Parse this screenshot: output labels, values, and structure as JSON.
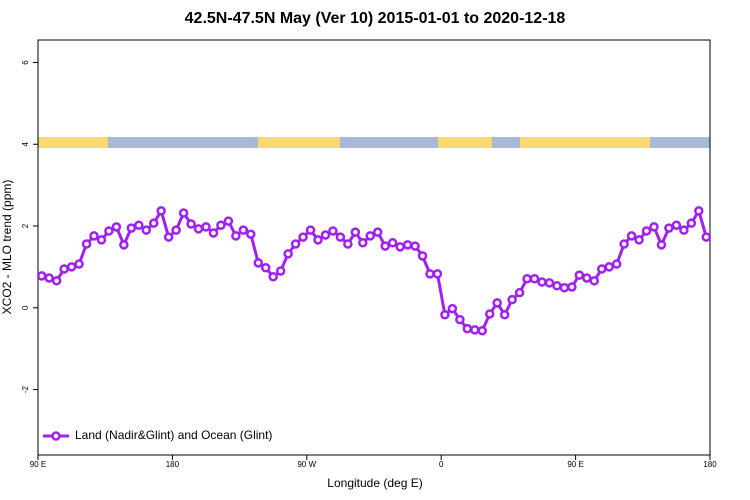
{
  "chart_data": {
    "type": "line",
    "title": "42.5N-47.5N May (Ver 10)   2015-01-01 to 2020-12-18",
    "x_label": "Longitude (deg E)",
    "y_label": "XCO2 - MLO trend (ppm)",
    "xlim": [
      90,
      540
    ],
    "ylim": [
      -3.6,
      6.55
    ],
    "xticks": [
      {
        "value": 90,
        "label": "90 E"
      },
      180,
      {
        "value": 270,
        "label": "90 W"
      },
      {
        "value": 360,
        "label": "0"
      },
      {
        "value": 450,
        "label": "90 E"
      },
      {
        "value": 540,
        "label": "180"
      }
    ],
    "yticks": [
      -2,
      0,
      2,
      4,
      6
    ],
    "grid": false,
    "legend": "bottom-left",
    "x": [
      92.5,
      97.5,
      102.5,
      107.5,
      112.5,
      117.5,
      122.5,
      127.5,
      132.5,
      137.5,
      142.5,
      147.5,
      152.5,
      157.5,
      162.5,
      167.5,
      172.5,
      177.5,
      182.5,
      187.5,
      192.5,
      197.5,
      202.5,
      207.5,
      212.5,
      217.5,
      222.5,
      227.5,
      232.5,
      237.5,
      242.5,
      247.5,
      252.5,
      257.5,
      262.5,
      267.5,
      272.5,
      277.5,
      282.5,
      287.5,
      292.5,
      297.5,
      302.5,
      307.5,
      312.5,
      317.5,
      322.5,
      327.5,
      332.5,
      337.5,
      342.5,
      347.5,
      352.5,
      357.5,
      362.5,
      367.5,
      372.5,
      377.5,
      382.5,
      387.5,
      392.5,
      397.5,
      402.5,
      407.5,
      412.5,
      417.5,
      422.5,
      427.5,
      432.5,
      437.5,
      442.5,
      447.5,
      452.5,
      457.5,
      462.5,
      467.5,
      472.5,
      477.5,
      482.5,
      487.5,
      492.5,
      497.5,
      502.5,
      507.5,
      512.5,
      517.5,
      522.5,
      527.5,
      532.5,
      537.5
    ],
    "series": [
      {
        "name": "Land (Nadir&Glint) and Ocean (Glint)",
        "color": "#a020f0",
        "values": [
          0.78,
          0.73,
          0.66,
          0.95,
          1.0,
          1.07,
          1.56,
          1.76,
          1.66,
          1.88,
          1.98,
          1.54,
          1.95,
          2.02,
          1.9,
          2.07,
          2.37,
          1.73,
          1.9,
          2.32,
          2.05,
          1.93,
          1.98,
          1.83,
          2.02,
          2.12,
          1.76,
          1.9,
          1.8,
          1.1,
          0.98,
          0.76,
          0.9,
          1.32,
          1.56,
          1.73,
          1.9,
          1.66,
          1.78,
          1.88,
          1.73,
          1.56,
          1.85,
          1.59,
          1.76,
          1.85,
          1.51,
          1.59,
          1.49,
          1.54,
          1.51,
          1.27,
          0.83,
          0.83,
          -0.17,
          -0.02,
          -0.29,
          -0.51,
          -0.54,
          -0.56,
          -0.15,
          0.12,
          -0.17,
          0.2,
          0.37,
          0.71,
          0.71,
          0.63,
          0.61,
          0.54,
          0.49,
          0.51,
          0.8,
          0.73,
          0.66,
          0.95,
          1.0,
          1.07,
          1.56,
          1.76,
          1.66,
          1.88,
          1.98,
          1.54,
          1.95,
          2.02,
          1.9,
          2.07,
          2.37,
          1.73
        ]
      }
    ]
  }
}
